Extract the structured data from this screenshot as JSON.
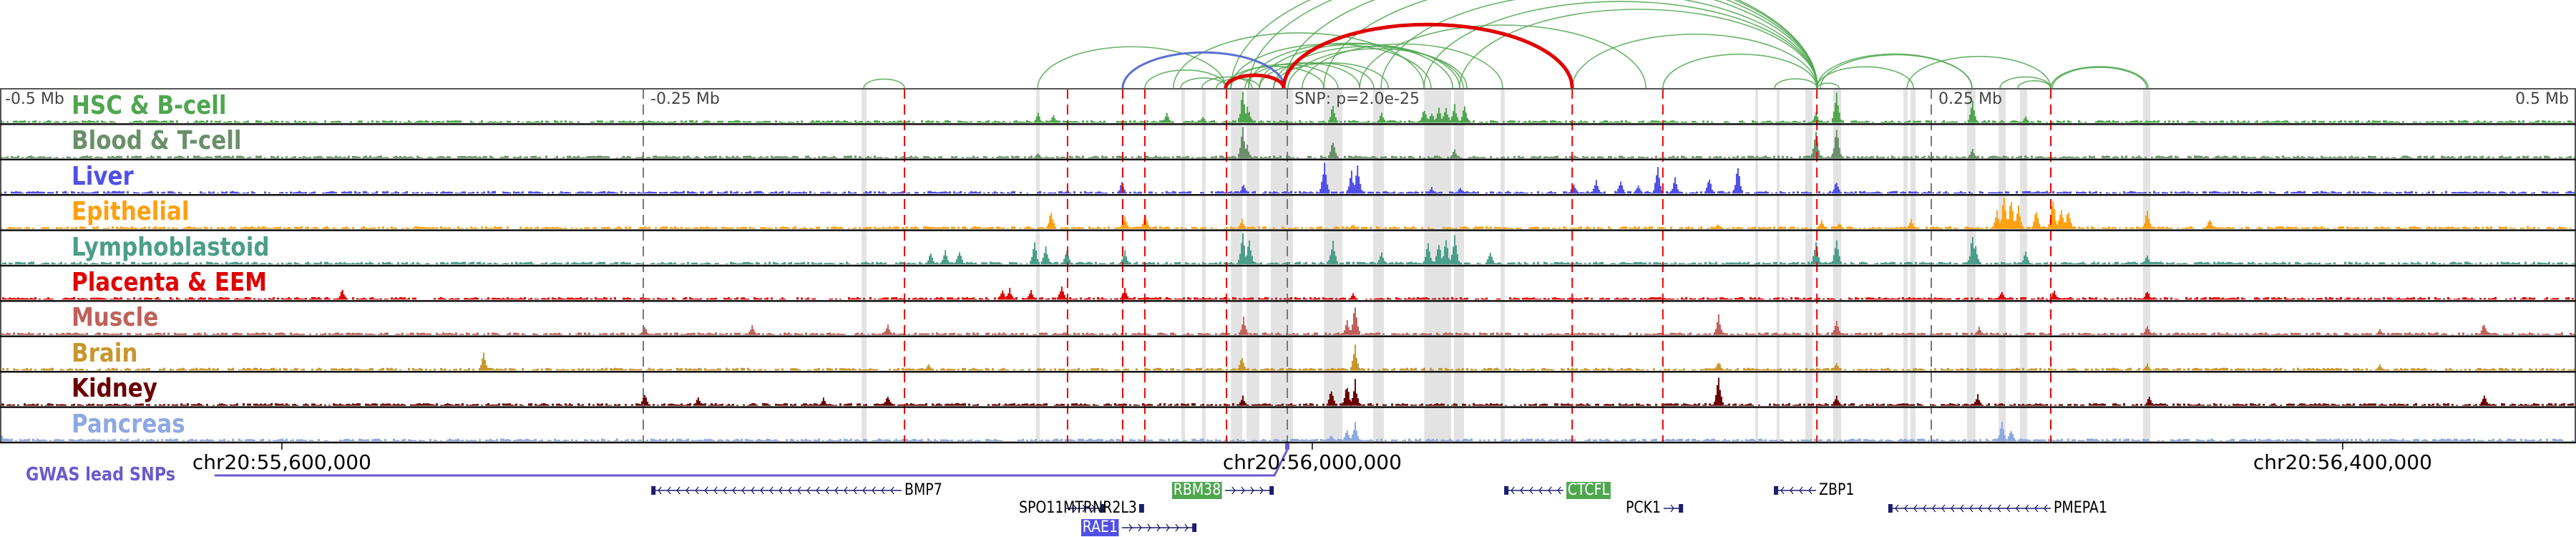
{
  "figure": {
    "axis": {
      "offset_labels": [
        {
          "kb": -500,
          "label": "-0.5 Mb"
        },
        {
          "kb": -250,
          "label": "-0.25 Mb"
        },
        {
          "kb": 0,
          "label": "SNP: p=2.0e-25"
        },
        {
          "kb": 250,
          "label": "0.25 Mb"
        },
        {
          "kb": 500,
          "label": "0.5 Mb"
        }
      ],
      "coordinate_labels": [
        {
          "kb": -390.3,
          "label": "chr20:55,600,000"
        },
        {
          "kb": 9.7,
          "label": "chr20:56,000,000"
        },
        {
          "kb": 409.7,
          "label": "chr20:56,400,000"
        }
      ],
      "gwas_label": "GWAS lead SNPs",
      "gwas_color": "#6a5acd"
    },
    "tracks": [
      {
        "label": "HSC & B-cell",
        "color": "#4fa64f",
        "peaks": [
          [
            -97,
            0.3
          ],
          [
            -91,
            0.25
          ],
          [
            -47,
            0.3
          ],
          [
            -33,
            0.2
          ],
          [
            -17.5,
            1.0
          ],
          [
            -15.8,
            0.5
          ],
          [
            -15,
            0.35
          ],
          [
            17.5,
            0.6
          ],
          [
            36.4,
            0.3
          ],
          [
            53,
            0.45
          ],
          [
            55.8,
            0.35
          ],
          [
            58.6,
            0.5
          ],
          [
            61.4,
            0.55
          ],
          [
            64.7,
            0.6
          ],
          [
            68.6,
            0.55
          ],
          [
            69.7,
            0.15
          ],
          [
            205,
            0.35
          ],
          [
            213,
            1.0
          ],
          [
            265.8,
            0.7
          ],
          [
            286.4,
            0.2
          ],
          [
            333.6,
            0.08
          ]
        ]
      },
      {
        "label": "Blood & T-cell",
        "color": "#6a8f6a",
        "peaks": [
          [
            -97,
            0.15
          ],
          [
            -17.5,
            1.0
          ],
          [
            -15.8,
            0.4
          ],
          [
            17.5,
            0.6
          ],
          [
            64.7,
            0.3
          ],
          [
            205,
            0.9
          ],
          [
            213,
            1.0
          ],
          [
            265.8,
            0.3
          ]
        ]
      },
      {
        "label": "Liver",
        "color": "#5050e6",
        "peaks": [
          [
            -64.4,
            0.35
          ],
          [
            -17.2,
            0.3
          ],
          [
            14.2,
            1.0
          ],
          [
            24.7,
            0.7
          ],
          [
            27,
            1.0
          ],
          [
            55.8,
            0.2
          ],
          [
            66.9,
            0.2
          ],
          [
            111,
            0.35
          ],
          [
            119.7,
            0.4
          ],
          [
            129.2,
            0.4
          ],
          [
            136,
            0.3
          ],
          [
            143.6,
            0.9
          ],
          [
            150.3,
            0.5
          ],
          [
            163.6,
            0.5
          ],
          [
            174.7,
            0.9
          ],
          [
            213,
            0.4
          ]
        ]
      },
      {
        "label": "Epithelial",
        "color": "#ffa010",
        "peaks": [
          [
            -91.9,
            0.6
          ],
          [
            -63.3,
            0.4
          ],
          [
            -55.3,
            0.5
          ],
          [
            -17.8,
            0.3
          ],
          [
            25.3,
            0.15
          ],
          [
            166.9,
            0.15
          ],
          [
            207.2,
            0.3
          ],
          [
            214.2,
            0.2
          ],
          [
            241.9,
            0.3
          ],
          [
            275.3,
            0.6
          ],
          [
            278,
            1.0
          ],
          [
            280.8,
            1.0
          ],
          [
            283.6,
            0.7
          ],
          [
            290.6,
            0.6
          ],
          [
            297,
            1.0
          ],
          [
            300.3,
            0.7
          ],
          [
            303,
            0.6
          ],
          [
            333.6,
            0.6
          ],
          [
            357.8,
            0.35
          ]
        ]
      },
      {
        "label": "Lymphoblastoid",
        "color": "#4a9e8a",
        "peaks": [
          [
            -138.6,
            0.4
          ],
          [
            -133,
            0.5
          ],
          [
            -127.5,
            0.45
          ],
          [
            -98.3,
            0.7
          ],
          [
            -94,
            0.6
          ],
          [
            -85.8,
            0.5
          ],
          [
            -63.3,
            0.45
          ],
          [
            -17.5,
            1.0
          ],
          [
            -15,
            0.8
          ],
          [
            17.5,
            0.8
          ],
          [
            36.4,
            0.4
          ],
          [
            54.4,
            0.8
          ],
          [
            58.6,
            0.75
          ],
          [
            61.4,
            0.8
          ],
          [
            64.7,
            1.0
          ],
          [
            78.6,
            0.45
          ],
          [
            205,
            0.7
          ],
          [
            213,
            0.8
          ],
          [
            265.8,
            0.9
          ],
          [
            267,
            0.6
          ],
          [
            286.4,
            0.4
          ],
          [
            333.6,
            0.3
          ]
        ]
      },
      {
        "label": "Placenta & EEM",
        "color": "#e00000",
        "peaks": [
          [
            -367,
            0.35
          ],
          [
            -110.8,
            0.3
          ],
          [
            -108,
            0.35
          ],
          [
            -99.7,
            0.3
          ],
          [
            -87.8,
            0.45
          ],
          [
            -63.3,
            0.35
          ],
          [
            25.3,
            0.2
          ],
          [
            277.2,
            0.3
          ],
          [
            297.5,
            0.3
          ],
          [
            333.6,
            0.3
          ]
        ]
      },
      {
        "label": "Muscle",
        "color": "#c0605a",
        "peaks": [
          [
            -249.7,
            0.3
          ],
          [
            -208,
            0.3
          ],
          [
            -155.3,
            0.35
          ],
          [
            -17.2,
            0.55
          ],
          [
            23,
            0.5
          ],
          [
            26.1,
            1.0
          ],
          [
            167.2,
            0.7
          ],
          [
            213,
            0.5
          ],
          [
            268.3,
            0.25
          ],
          [
            333.6,
            0.3
          ],
          [
            423.9,
            0.2
          ],
          [
            464.4,
            0.4
          ]
        ]
      },
      {
        "label": "Brain",
        "color": "#c8962e",
        "peaks": [
          [
            -312.2,
            0.55
          ],
          [
            -139.4,
            0.2
          ],
          [
            -17.8,
            0.45
          ],
          [
            26.1,
            0.8
          ],
          [
            167.2,
            0.3
          ],
          [
            213,
            0.25
          ],
          [
            333.6,
            0.2
          ],
          [
            423.9,
            0.2
          ]
        ]
      },
      {
        "label": "Kidney",
        "color": "#6a0000",
        "peaks": [
          [
            -249.7,
            0.4
          ],
          [
            -228.9,
            0.3
          ],
          [
            -180.3,
            0.25
          ],
          [
            -155.3,
            0.35
          ],
          [
            -17.5,
            0.3
          ],
          [
            16.9,
            0.5
          ],
          [
            23,
            0.7
          ],
          [
            26.1,
            0.8
          ],
          [
            167.2,
            0.9
          ],
          [
            213,
            0.35
          ],
          [
            267.8,
            0.35
          ],
          [
            334.4,
            0.3
          ],
          [
            464.4,
            0.35
          ]
        ]
      },
      {
        "label": "Pancreas",
        "color": "#8ea8e0",
        "peaks": [
          [
            -499.7,
            0.3
          ],
          [
            16.9,
            0.2
          ],
          [
            23,
            0.35
          ],
          [
            26.1,
            0.6
          ],
          [
            277.2,
            0.6
          ],
          [
            280.8,
            0.4
          ]
        ]
      }
    ],
    "red_lines_kb": [
      -148.6,
      -85.3,
      -63.9,
      -55.3,
      -23.6,
      110.6,
      145.8,
      205.6,
      296.4
    ],
    "grey_lines_kb": [
      -250,
      0,
      250
    ],
    "highlight_bands_kb": [
      [
        -165.3,
        -163.3
      ],
      [
        -97.5,
        -96.1
      ],
      [
        -41.1,
        -39.7
      ],
      [
        -33.1,
        -31.7
      ],
      [
        -21.9,
        -17.5
      ],
      [
        -15.8,
        -10.8
      ],
      [
        -6.4,
        2.2
      ],
      [
        14.2,
        21.4
      ],
      [
        33.3,
        37.5
      ],
      [
        53.1,
        63.6
      ],
      [
        64.7,
        68.6
      ],
      [
        82.8,
        84.4
      ],
      [
        181.7,
        182.8
      ],
      [
        190,
        191.1
      ],
      [
        201.1,
        203.9
      ],
      [
        211.9,
        215
      ],
      [
        239.2,
        240.8
      ],
      [
        241.9,
        243.9
      ],
      [
        263.9,
        267.2
      ],
      [
        276.1,
        278.9
      ],
      [
        284.4,
        287.2
      ],
      [
        332.2,
        335
      ]
    ],
    "loops": [
      {
        "from": -164.4,
        "to": -148.6,
        "color": "#4fa64f"
      },
      {
        "from": -96.9,
        "to": -23.9,
        "color": "#4fa64f"
      },
      {
        "from": -55.3,
        "to": -23.6,
        "color": "#4fa64f"
      },
      {
        "from": -41.4,
        "to": -23.6,
        "color": "#4fa64f"
      },
      {
        "from": -33.1,
        "to": -13.6,
        "color": "#4fa64f"
      },
      {
        "from": -27.5,
        "to": -10.8,
        "color": "#4fa64f"
      },
      {
        "from": -23.9,
        "to": 14.2,
        "color": "#4fa64f"
      },
      {
        "from": -21.9,
        "to": 19.7,
        "color": "#4fa64f"
      },
      {
        "from": -16.4,
        "to": 28.1,
        "color": "#4fa64f"
      },
      {
        "from": -10.8,
        "to": 33.6,
        "color": "#4fa64f"
      },
      {
        "from": -5.3,
        "to": 39.2,
        "color": "#4fa64f"
      },
      {
        "from": -21.9,
        "to": 55.8,
        "color": "#4fa64f"
      },
      {
        "from": -15,
        "to": 64.2,
        "color": "#4fa64f"
      },
      {
        "from": -10.8,
        "to": 66.9,
        "color": "#4fa64f"
      },
      {
        "from": -5.3,
        "to": 68.3,
        "color": "#4fa64f"
      },
      {
        "from": 0.3,
        "to": 69.7,
        "color": "#4fa64f"
      },
      {
        "from": 5.8,
        "to": 83.6,
        "color": "#4fa64f"
      },
      {
        "from": -44.2,
        "to": 53.1,
        "color": "#4fa64f"
      },
      {
        "from": -21.9,
        "to": 205.8,
        "color": "#4fa64f"
      },
      {
        "from": -15,
        "to": 205.8,
        "color": "#4fa64f"
      },
      {
        "from": -1.4,
        "to": 205.8,
        "color": "#4fa64f"
      },
      {
        "from": 14.2,
        "to": 205.8,
        "color": "#4fa64f"
      },
      {
        "from": 36.4,
        "to": 205.8,
        "color": "#4fa64f"
      },
      {
        "from": 53.1,
        "to": 205.8,
        "color": "#4fa64f"
      },
      {
        "from": 66.9,
        "to": 205.8,
        "color": "#4fa64f"
      },
      {
        "from": 28.1,
        "to": 139.2,
        "color": "#4fa64f"
      },
      {
        "from": 110.6,
        "to": 205.6,
        "color": "#4fa64f"
      },
      {
        "from": 145.8,
        "to": 205.6,
        "color": "#4fa64f"
      },
      {
        "from": 189.2,
        "to": 205.6,
        "color": "#4fa64f"
      },
      {
        "from": 205.6,
        "to": 214.2,
        "color": "#4fa64f"
      },
      {
        "from": 205.6,
        "to": 243.1,
        "color": "#4fa64f"
      },
      {
        "from": 205.6,
        "to": 265.8,
        "color": "#4fa64f"
      },
      {
        "from": 207,
        "to": 265.8,
        "color": "#4fa64f"
      },
      {
        "from": 240.6,
        "to": 296.4,
        "color": "#4fa64f"
      },
      {
        "from": 276.7,
        "to": 296.4,
        "color": "#4fa64f"
      },
      {
        "from": 283.6,
        "to": 296.4,
        "color": "#4fa64f"
      },
      {
        "from": 296.4,
        "to": 334.2,
        "color": "#4fa64f"
      },
      {
        "from": 297,
        "to": 333.6,
        "color": "#4fa64f"
      },
      {
        "from": -63.9,
        "to": -1.1,
        "color": "#5a6fd0",
        "weight": "medium"
      },
      {
        "from": -23.9,
        "to": -1.4,
        "color": "#e00000",
        "weight": "heavy"
      },
      {
        "from": -1.4,
        "to": 110.6,
        "color": "#e00000",
        "weight": "heavy"
      }
    ],
    "gwas_snp_kb": 0,
    "genes": [
      {
        "name": "BMP7",
        "start": -246.9,
        "end": -149.7,
        "strand": "-",
        "row": 0,
        "highlight": null
      },
      {
        "name": "RBM38",
        "start": -24.2,
        "end": -5.8,
        "strand": "+",
        "row": 0,
        "highlight": "#4fa64f"
      },
      {
        "name": "CTCFL",
        "start": 84.2,
        "end": 107.2,
        "strand": "-",
        "row": 0,
        "highlight": "#4fa64f"
      },
      {
        "name": "ZBP1",
        "start": 188.9,
        "end": 205.3,
        "strand": "-",
        "row": 0,
        "highlight": null
      },
      {
        "name": "SPO11",
        "start": -85.8,
        "end": -71.1,
        "strand": "+",
        "row": 1,
        "highlight": null
      },
      {
        "name": "MTRNR2L3",
        "start": -57.2,
        "end": -56.4,
        "strand": "+",
        "row": 1,
        "highlight": null
      },
      {
        "name": "PCK1",
        "start": 146.1,
        "end": 153.1,
        "strand": "+",
        "row": 1,
        "highlight": null
      },
      {
        "name": "PMEPA1",
        "start": 233.3,
        "end": 296.4,
        "strand": "-",
        "row": 1,
        "highlight": null
      },
      {
        "name": "RAE1",
        "start": -64.2,
        "end": -35.8,
        "strand": "+",
        "row": 2,
        "highlight": "#5050e6"
      }
    ]
  }
}
